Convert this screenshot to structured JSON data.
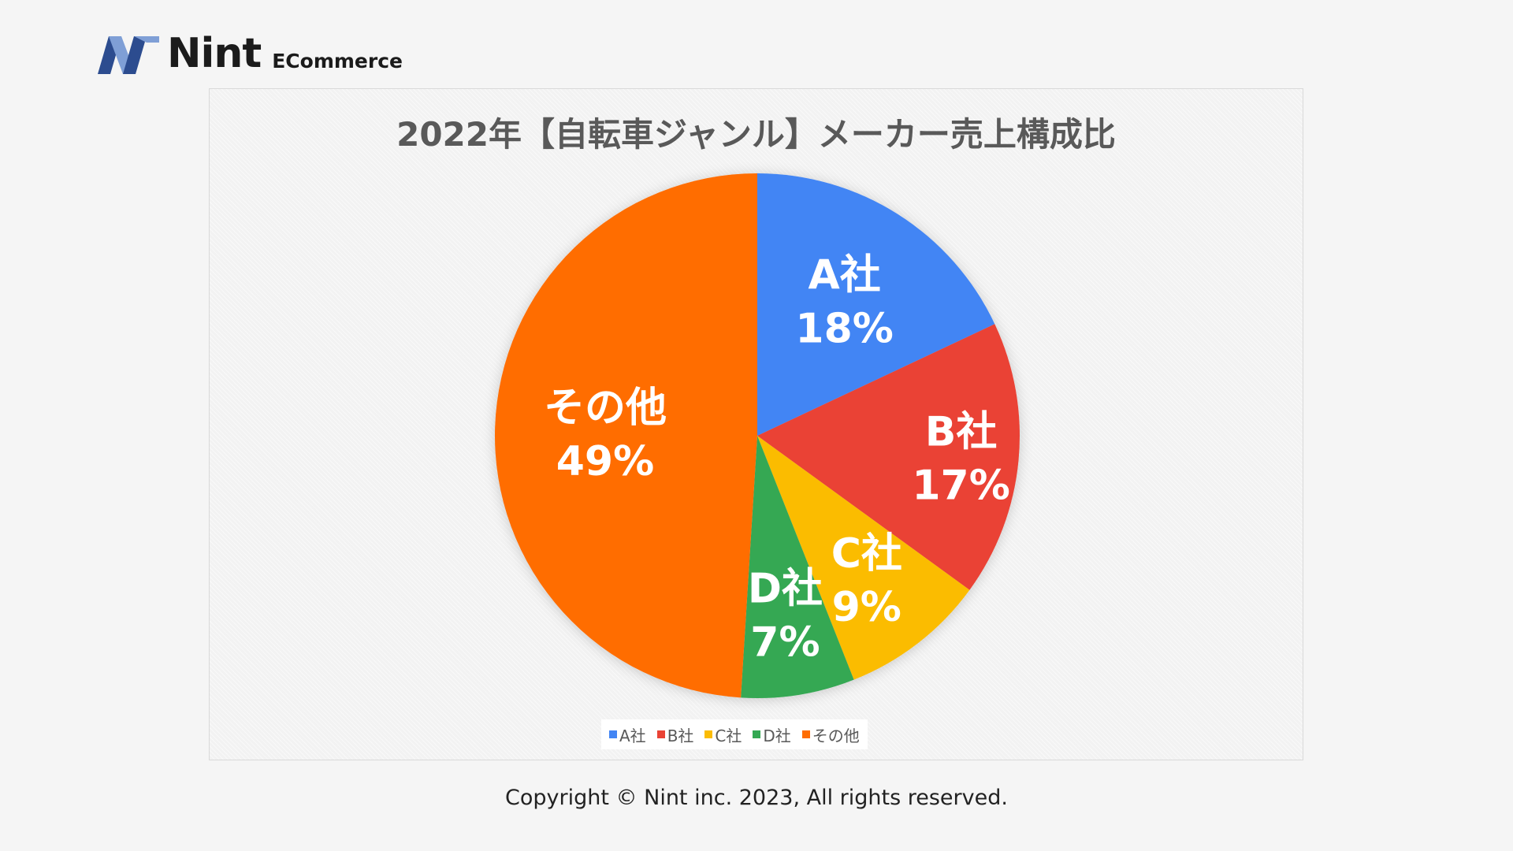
{
  "logo": {
    "name": "Nint",
    "sub": "ECommerce"
  },
  "copyright": "Copyright © Nint inc. 2023, All rights reserved.",
  "chart_data": {
    "type": "pie",
    "title": "2022年【自転車ジャンル】メーカー売上構成比",
    "categories": [
      "A社",
      "B社",
      "C社",
      "D社",
      "その他"
    ],
    "values": [
      18,
      17,
      9,
      7,
      49
    ],
    "labels": [
      "18%",
      "17%",
      "9%",
      "7%",
      "49%"
    ],
    "colors": [
      "#4285f4",
      "#ea4335",
      "#fbbc04",
      "#34a853",
      "#ff6d01"
    ],
    "legend_position": "bottom"
  }
}
